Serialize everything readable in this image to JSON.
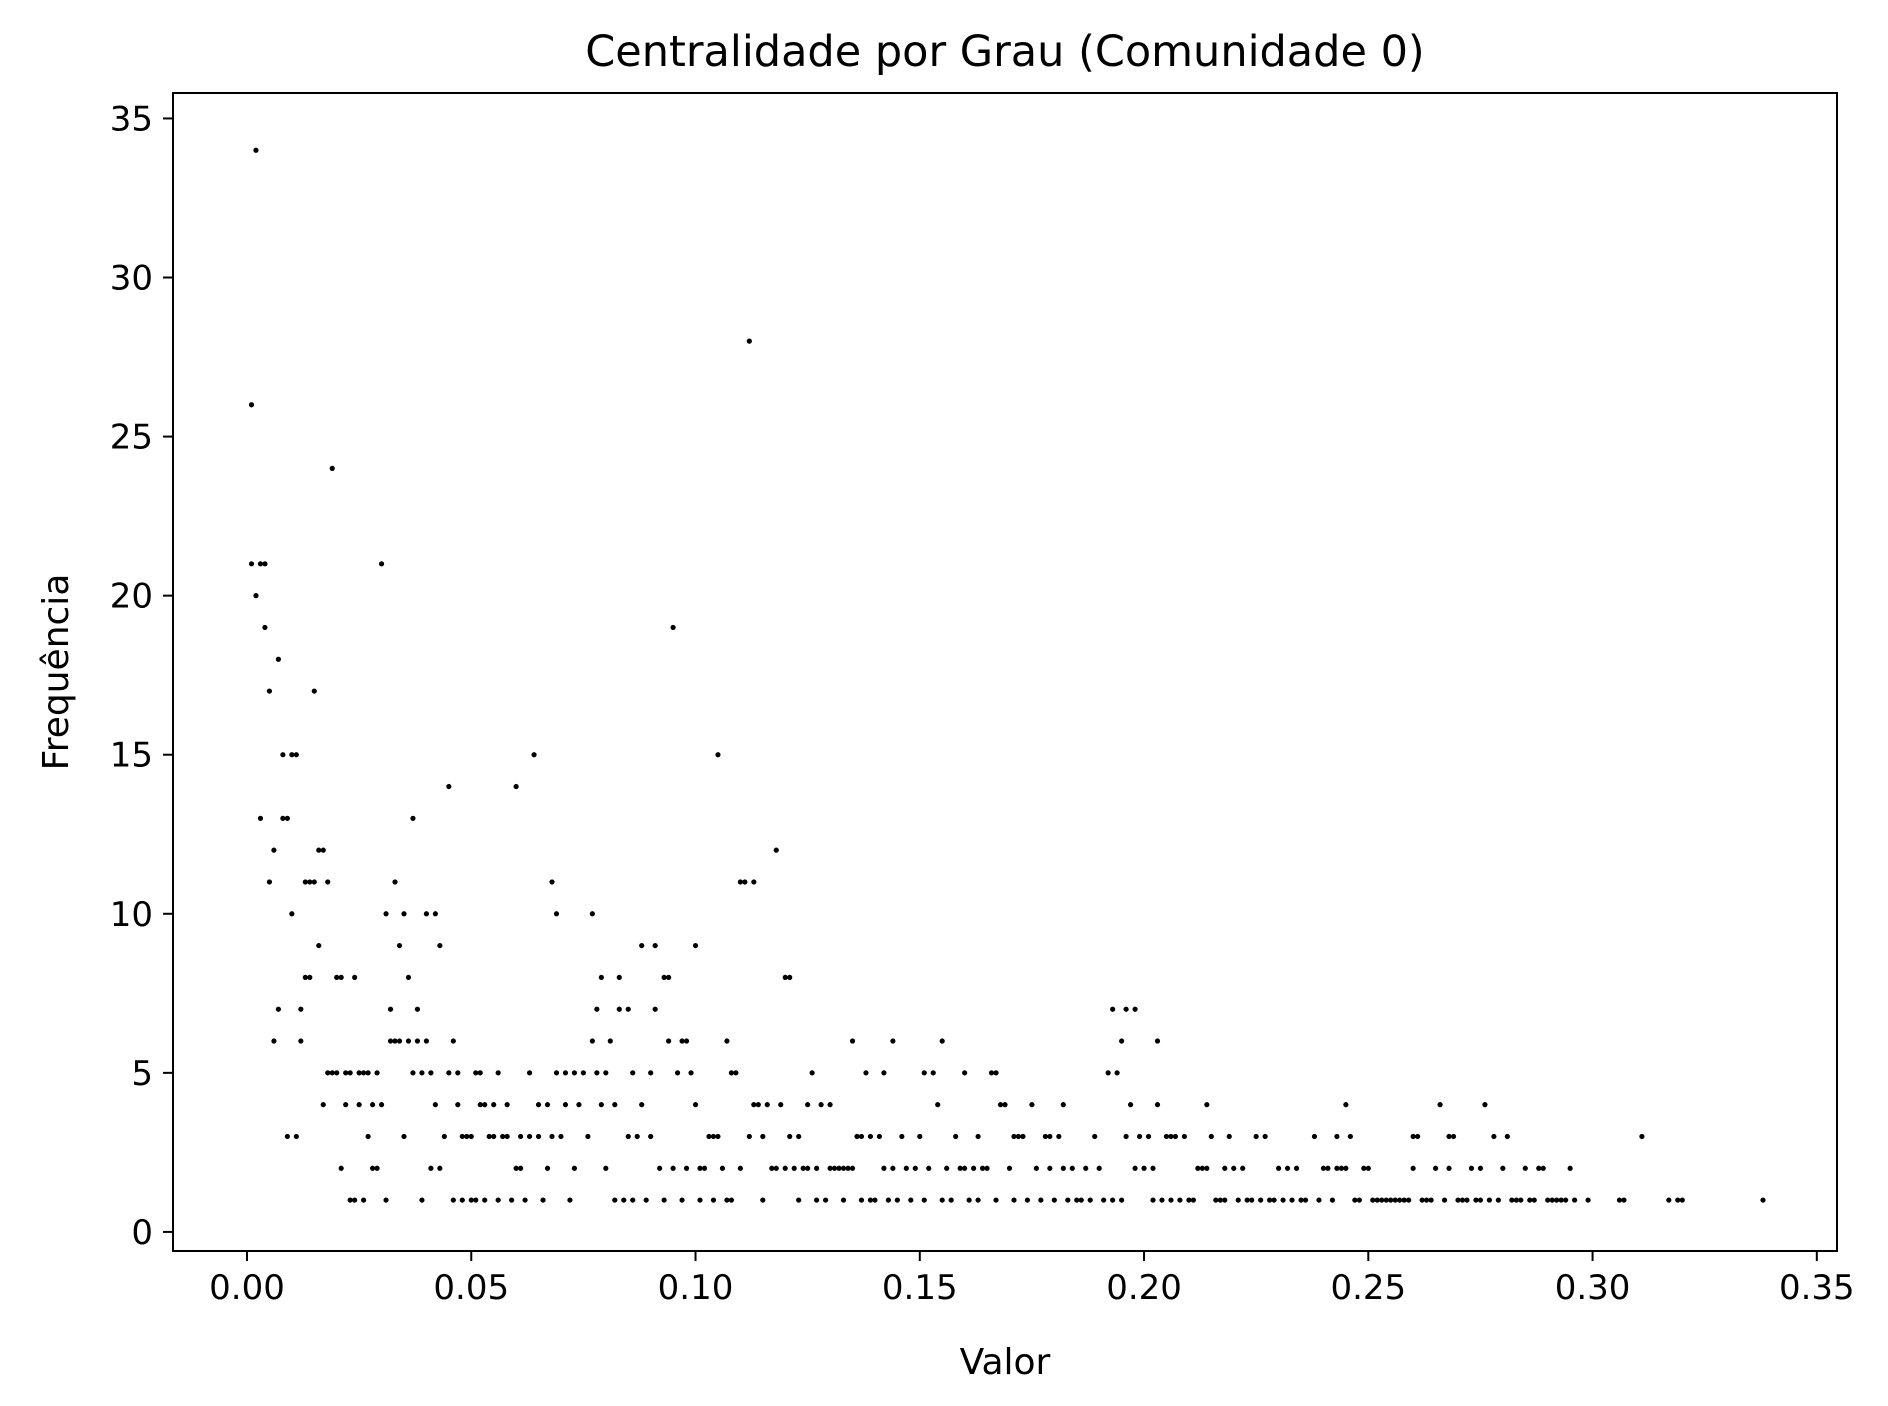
{
  "chart_data": {
    "type": "scatter",
    "title": "Centralidade por Grau (Comunidade 0)",
    "xlabel": "Valor",
    "ylabel": "Frequência",
    "xlim": [
      -0.0165,
      0.3545
    ],
    "ylim": [
      -0.6,
      35.8
    ],
    "xticks": [
      "0.00",
      "0.05",
      "0.10",
      "0.15",
      "0.20",
      "0.25",
      "0.30",
      "0.35"
    ],
    "yticks": [
      "0",
      "5",
      "10",
      "15",
      "20",
      "25",
      "30",
      "35"
    ],
    "grid": false,
    "marker_color": "#000000",
    "points": [
      [
        0.001,
        21
      ],
      [
        0.001,
        26
      ],
      [
        0.002,
        20
      ],
      [
        0.002,
        34
      ],
      [
        0.003,
        21
      ],
      [
        0.003,
        13
      ],
      [
        0.004,
        21
      ],
      [
        0.004,
        19
      ],
      [
        0.005,
        17
      ],
      [
        0.005,
        11
      ],
      [
        0.006,
        12
      ],
      [
        0.006,
        6
      ],
      [
        0.007,
        18
      ],
      [
        0.007,
        7
      ],
      [
        0.008,
        13
      ],
      [
        0.008,
        15
      ],
      [
        0.009,
        13
      ],
      [
        0.009,
        3
      ],
      [
        0.01,
        15
      ],
      [
        0.01,
        10
      ],
      [
        0.011,
        3
      ],
      [
        0.011,
        15
      ],
      [
        0.012,
        6
      ],
      [
        0.012,
        7
      ],
      [
        0.013,
        8
      ],
      [
        0.013,
        11
      ],
      [
        0.014,
        8
      ],
      [
        0.014,
        11
      ],
      [
        0.015,
        17
      ],
      [
        0.015,
        11
      ],
      [
        0.016,
        12
      ],
      [
        0.016,
        9
      ],
      [
        0.017,
        4
      ],
      [
        0.017,
        12
      ],
      [
        0.018,
        5
      ],
      [
        0.018,
        11
      ],
      [
        0.019,
        5
      ],
      [
        0.019,
        24
      ],
      [
        0.02,
        8
      ],
      [
        0.02,
        5
      ],
      [
        0.021,
        8
      ],
      [
        0.021,
        2
      ],
      [
        0.022,
        5
      ],
      [
        0.022,
        4
      ],
      [
        0.023,
        5
      ],
      [
        0.023,
        1
      ],
      [
        0.024,
        8
      ],
      [
        0.024,
        1
      ],
      [
        0.025,
        5
      ],
      [
        0.025,
        4
      ],
      [
        0.026,
        5
      ],
      [
        0.026,
        1
      ],
      [
        0.027,
        3
      ],
      [
        0.027,
        5
      ],
      [
        0.028,
        2
      ],
      [
        0.028,
        4
      ],
      [
        0.029,
        5
      ],
      [
        0.029,
        2
      ],
      [
        0.03,
        21
      ],
      [
        0.03,
        4
      ],
      [
        0.031,
        1
      ],
      [
        0.031,
        10
      ],
      [
        0.032,
        7
      ],
      [
        0.032,
        6
      ],
      [
        0.033,
        11
      ],
      [
        0.033,
        6
      ],
      [
        0.034,
        9
      ],
      [
        0.034,
        6
      ],
      [
        0.035,
        3
      ],
      [
        0.035,
        10
      ],
      [
        0.036,
        6
      ],
      [
        0.036,
        8
      ],
      [
        0.037,
        5
      ],
      [
        0.037,
        13
      ],
      [
        0.038,
        6
      ],
      [
        0.038,
        7
      ],
      [
        0.039,
        1
      ],
      [
        0.039,
        5
      ],
      [
        0.04,
        10
      ],
      [
        0.04,
        6
      ],
      [
        0.041,
        5
      ],
      [
        0.041,
        2
      ],
      [
        0.042,
        4
      ],
      [
        0.042,
        10
      ],
      [
        0.043,
        2
      ],
      [
        0.043,
        9
      ],
      [
        0.044,
        3
      ],
      [
        0.045,
        5
      ],
      [
        0.045,
        14
      ],
      [
        0.046,
        6
      ],
      [
        0.046,
        1
      ],
      [
        0.047,
        4
      ],
      [
        0.047,
        5
      ],
      [
        0.048,
        1
      ],
      [
        0.048,
        3
      ],
      [
        0.049,
        3
      ],
      [
        0.05,
        1
      ],
      [
        0.05,
        3
      ],
      [
        0.051,
        5
      ],
      [
        0.051,
        1
      ],
      [
        0.052,
        4
      ],
      [
        0.052,
        5
      ],
      [
        0.053,
        1
      ],
      [
        0.053,
        4
      ],
      [
        0.054,
        3
      ],
      [
        0.055,
        4
      ],
      [
        0.055,
        3
      ],
      [
        0.056,
        1
      ],
      [
        0.056,
        5
      ],
      [
        0.057,
        3
      ],
      [
        0.058,
        4
      ],
      [
        0.058,
        3
      ],
      [
        0.059,
        1
      ],
      [
        0.06,
        14
      ],
      [
        0.06,
        2
      ],
      [
        0.061,
        3
      ],
      [
        0.061,
        2
      ],
      [
        0.062,
        1
      ],
      [
        0.063,
        3
      ],
      [
        0.063,
        5
      ],
      [
        0.064,
        15
      ],
      [
        0.065,
        4
      ],
      [
        0.065,
        3
      ],
      [
        0.066,
        1
      ],
      [
        0.067,
        4
      ],
      [
        0.067,
        2
      ],
      [
        0.068,
        11
      ],
      [
        0.068,
        3
      ],
      [
        0.069,
        10
      ],
      [
        0.069,
        5
      ],
      [
        0.07,
        3
      ],
      [
        0.071,
        5
      ],
      [
        0.071,
        4
      ],
      [
        0.072,
        1
      ],
      [
        0.073,
        5
      ],
      [
        0.073,
        2
      ],
      [
        0.074,
        4
      ],
      [
        0.075,
        5
      ],
      [
        0.076,
        3
      ],
      [
        0.077,
        10
      ],
      [
        0.077,
        6
      ],
      [
        0.078,
        7
      ],
      [
        0.078,
        5
      ],
      [
        0.079,
        8
      ],
      [
        0.079,
        4
      ],
      [
        0.08,
        2
      ],
      [
        0.08,
        5
      ],
      [
        0.081,
        6
      ],
      [
        0.082,
        4
      ],
      [
        0.082,
        1
      ],
      [
        0.083,
        8
      ],
      [
        0.083,
        7
      ],
      [
        0.084,
        1
      ],
      [
        0.085,
        7
      ],
      [
        0.085,
        3
      ],
      [
        0.086,
        1
      ],
      [
        0.086,
        5
      ],
      [
        0.087,
        3
      ],
      [
        0.088,
        4
      ],
      [
        0.088,
        9
      ],
      [
        0.089,
        1
      ],
      [
        0.09,
        3
      ],
      [
        0.09,
        5
      ],
      [
        0.091,
        9
      ],
      [
        0.091,
        7
      ],
      [
        0.092,
        2
      ],
      [
        0.093,
        8
      ],
      [
        0.093,
        1
      ],
      [
        0.094,
        8
      ],
      [
        0.094,
        6
      ],
      [
        0.095,
        19
      ],
      [
        0.095,
        2
      ],
      [
        0.096,
        5
      ],
      [
        0.097,
        6
      ],
      [
        0.097,
        1
      ],
      [
        0.098,
        2
      ],
      [
        0.098,
        6
      ],
      [
        0.099,
        5
      ],
      [
        0.1,
        9
      ],
      [
        0.1,
        4
      ],
      [
        0.101,
        2
      ],
      [
        0.101,
        1
      ],
      [
        0.102,
        2
      ],
      [
        0.103,
        3
      ],
      [
        0.104,
        3
      ],
      [
        0.104,
        1
      ],
      [
        0.105,
        3
      ],
      [
        0.105,
        15
      ],
      [
        0.106,
        2
      ],
      [
        0.107,
        6
      ],
      [
        0.107,
        1
      ],
      [
        0.108,
        5
      ],
      [
        0.108,
        1
      ],
      [
        0.109,
        5
      ],
      [
        0.11,
        11
      ],
      [
        0.11,
        2
      ],
      [
        0.111,
        11
      ],
      [
        0.112,
        28
      ],
      [
        0.112,
        3
      ],
      [
        0.113,
        4
      ],
      [
        0.113,
        11
      ],
      [
        0.114,
        4
      ],
      [
        0.115,
        3
      ],
      [
        0.115,
        1
      ],
      [
        0.116,
        4
      ],
      [
        0.117,
        2
      ],
      [
        0.118,
        2
      ],
      [
        0.118,
        12
      ],
      [
        0.119,
        4
      ],
      [
        0.12,
        8
      ],
      [
        0.12,
        2
      ],
      [
        0.121,
        3
      ],
      [
        0.121,
        8
      ],
      [
        0.122,
        2
      ],
      [
        0.123,
        3
      ],
      [
        0.123,
        1
      ],
      [
        0.124,
        2
      ],
      [
        0.125,
        4
      ],
      [
        0.125,
        2
      ],
      [
        0.126,
        5
      ],
      [
        0.127,
        2
      ],
      [
        0.127,
        1
      ],
      [
        0.128,
        4
      ],
      [
        0.129,
        1
      ],
      [
        0.13,
        2
      ],
      [
        0.13,
        4
      ],
      [
        0.131,
        2
      ],
      [
        0.132,
        2
      ],
      [
        0.133,
        1
      ],
      [
        0.133,
        2
      ],
      [
        0.134,
        2
      ],
      [
        0.135,
        6
      ],
      [
        0.135,
        2
      ],
      [
        0.136,
        3
      ],
      [
        0.137,
        1
      ],
      [
        0.137,
        3
      ],
      [
        0.138,
        5
      ],
      [
        0.139,
        1
      ],
      [
        0.139,
        3
      ],
      [
        0.14,
        1
      ],
      [
        0.141,
        3
      ],
      [
        0.142,
        2
      ],
      [
        0.142,
        5
      ],
      [
        0.143,
        1
      ],
      [
        0.144,
        6
      ],
      [
        0.144,
        2
      ],
      [
        0.145,
        1
      ],
      [
        0.146,
        3
      ],
      [
        0.147,
        2
      ],
      [
        0.148,
        1
      ],
      [
        0.149,
        2
      ],
      [
        0.15,
        3
      ],
      [
        0.151,
        5
      ],
      [
        0.151,
        1
      ],
      [
        0.152,
        2
      ],
      [
        0.153,
        5
      ],
      [
        0.154,
        4
      ],
      [
        0.155,
        6
      ],
      [
        0.155,
        1
      ],
      [
        0.156,
        2
      ],
      [
        0.157,
        1
      ],
      [
        0.158,
        3
      ],
      [
        0.159,
        2
      ],
      [
        0.16,
        2
      ],
      [
        0.16,
        5
      ],
      [
        0.161,
        1
      ],
      [
        0.162,
        2
      ],
      [
        0.163,
        3
      ],
      [
        0.163,
        1
      ],
      [
        0.164,
        2
      ],
      [
        0.165,
        2
      ],
      [
        0.166,
        5
      ],
      [
        0.167,
        1
      ],
      [
        0.167,
        5
      ],
      [
        0.168,
        4
      ],
      [
        0.169,
        4
      ],
      [
        0.17,
        2
      ],
      [
        0.171,
        3
      ],
      [
        0.171,
        1
      ],
      [
        0.172,
        3
      ],
      [
        0.173,
        3
      ],
      [
        0.174,
        1
      ],
      [
        0.175,
        4
      ],
      [
        0.176,
        2
      ],
      [
        0.177,
        1
      ],
      [
        0.178,
        3
      ],
      [
        0.179,
        2
      ],
      [
        0.179,
        3
      ],
      [
        0.18,
        1
      ],
      [
        0.181,
        3
      ],
      [
        0.182,
        4
      ],
      [
        0.182,
        2
      ],
      [
        0.183,
        1
      ],
      [
        0.184,
        2
      ],
      [
        0.185,
        1
      ],
      [
        0.186,
        1
      ],
      [
        0.187,
        2
      ],
      [
        0.188,
        1
      ],
      [
        0.189,
        3
      ],
      [
        0.19,
        2
      ],
      [
        0.191,
        1
      ],
      [
        0.192,
        5
      ],
      [
        0.193,
        1
      ],
      [
        0.193,
        7
      ],
      [
        0.194,
        5
      ],
      [
        0.195,
        6
      ],
      [
        0.195,
        1
      ],
      [
        0.196,
        7
      ],
      [
        0.196,
        3
      ],
      [
        0.197,
        4
      ],
      [
        0.198,
        7
      ],
      [
        0.198,
        2
      ],
      [
        0.199,
        3
      ],
      [
        0.2,
        2
      ],
      [
        0.201,
        3
      ],
      [
        0.202,
        2
      ],
      [
        0.202,
        1
      ],
      [
        0.203,
        4
      ],
      [
        0.203,
        6
      ],
      [
        0.204,
        1
      ],
      [
        0.205,
        3
      ],
      [
        0.206,
        3
      ],
      [
        0.206,
        1
      ],
      [
        0.207,
        3
      ],
      [
        0.208,
        1
      ],
      [
        0.209,
        3
      ],
      [
        0.21,
        1
      ],
      [
        0.211,
        1
      ],
      [
        0.212,
        2
      ],
      [
        0.213,
        2
      ],
      [
        0.214,
        4
      ],
      [
        0.214,
        2
      ],
      [
        0.215,
        3
      ],
      [
        0.216,
        1
      ],
      [
        0.217,
        1
      ],
      [
        0.218,
        2
      ],
      [
        0.218,
        1
      ],
      [
        0.219,
        3
      ],
      [
        0.22,
        2
      ],
      [
        0.221,
        1
      ],
      [
        0.222,
        2
      ],
      [
        0.223,
        1
      ],
      [
        0.224,
        1
      ],
      [
        0.225,
        3
      ],
      [
        0.226,
        1
      ],
      [
        0.227,
        3
      ],
      [
        0.228,
        1
      ],
      [
        0.229,
        1
      ],
      [
        0.23,
        2
      ],
      [
        0.231,
        1
      ],
      [
        0.232,
        2
      ],
      [
        0.233,
        1
      ],
      [
        0.234,
        2
      ],
      [
        0.235,
        1
      ],
      [
        0.236,
        1
      ],
      [
        0.238,
        3
      ],
      [
        0.239,
        1
      ],
      [
        0.24,
        2
      ],
      [
        0.241,
        2
      ],
      [
        0.242,
        1
      ],
      [
        0.243,
        3
      ],
      [
        0.243,
        2
      ],
      [
        0.244,
        2
      ],
      [
        0.245,
        4
      ],
      [
        0.245,
        2
      ],
      [
        0.246,
        3
      ],
      [
        0.247,
        1
      ],
      [
        0.248,
        1
      ],
      [
        0.249,
        2
      ],
      [
        0.25,
        2
      ],
      [
        0.251,
        1
      ],
      [
        0.252,
        1
      ],
      [
        0.253,
        1
      ],
      [
        0.254,
        1
      ],
      [
        0.255,
        1
      ],
      [
        0.256,
        1
      ],
      [
        0.257,
        1
      ],
      [
        0.258,
        1
      ],
      [
        0.259,
        1
      ],
      [
        0.26,
        3
      ],
      [
        0.26,
        2
      ],
      [
        0.261,
        3
      ],
      [
        0.262,
        1
      ],
      [
        0.263,
        1
      ],
      [
        0.264,
        1
      ],
      [
        0.265,
        2
      ],
      [
        0.266,
        4
      ],
      [
        0.267,
        1
      ],
      [
        0.268,
        2
      ],
      [
        0.268,
        3
      ],
      [
        0.269,
        3
      ],
      [
        0.27,
        1
      ],
      [
        0.271,
        1
      ],
      [
        0.272,
        1
      ],
      [
        0.273,
        2
      ],
      [
        0.274,
        1
      ],
      [
        0.275,
        2
      ],
      [
        0.275,
        1
      ],
      [
        0.276,
        4
      ],
      [
        0.277,
        1
      ],
      [
        0.278,
        3
      ],
      [
        0.279,
        1
      ],
      [
        0.28,
        2
      ],
      [
        0.281,
        3
      ],
      [
        0.282,
        1
      ],
      [
        0.283,
        1
      ],
      [
        0.284,
        1
      ],
      [
        0.285,
        2
      ],
      [
        0.286,
        1
      ],
      [
        0.287,
        1
      ],
      [
        0.288,
        2
      ],
      [
        0.289,
        2
      ],
      [
        0.29,
        1
      ],
      [
        0.291,
        1
      ],
      [
        0.292,
        1
      ],
      [
        0.293,
        1
      ],
      [
        0.294,
        1
      ],
      [
        0.295,
        2
      ],
      [
        0.296,
        1
      ],
      [
        0.299,
        1
      ],
      [
        0.306,
        1
      ],
      [
        0.307,
        1
      ],
      [
        0.311,
        3
      ],
      [
        0.317,
        1
      ],
      [
        0.319,
        1
      ],
      [
        0.32,
        1
      ],
      [
        0.338,
        1
      ]
    ]
  }
}
